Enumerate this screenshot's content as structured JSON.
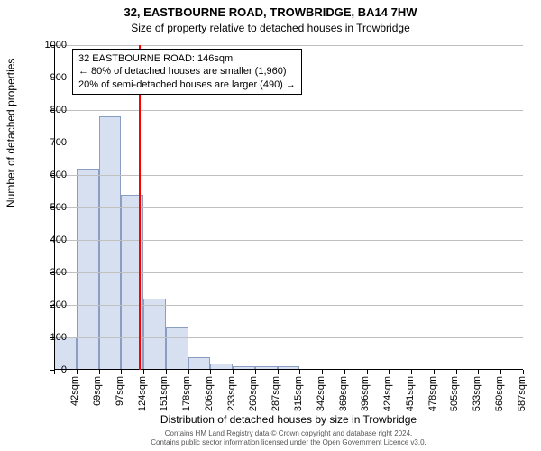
{
  "title_main": "32, EASTBOURNE ROAD, TROWBRIDGE, BA14 7HW",
  "title_sub": "Size of property relative to detached houses in Trowbridge",
  "ylabel": "Number of detached properties",
  "xlabel": "Distribution of detached houses by size in Trowbridge",
  "footer_line1": "Contains HM Land Registry data © Crown copyright and database right 2024.",
  "footer_line2": "Contains public sector information licensed under the Open Government Licence v3.0.",
  "chart": {
    "type": "histogram",
    "ylim": [
      0,
      1000
    ],
    "ytick_step": 100,
    "x_categories": [
      "42sqm",
      "69sqm",
      "97sqm",
      "124sqm",
      "151sqm",
      "178sqm",
      "206sqm",
      "233sqm",
      "260sqm",
      "287sqm",
      "315sqm",
      "342sqm",
      "369sqm",
      "396sqm",
      "424sqm",
      "451sqm",
      "478sqm",
      "505sqm",
      "533sqm",
      "560sqm",
      "587sqm"
    ],
    "values": [
      100,
      620,
      780,
      540,
      220,
      130,
      40,
      20,
      10,
      10,
      10,
      0,
      0,
      0,
      0,
      0,
      0,
      0,
      0,
      0,
      0
    ],
    "bar_fill": "#d6e0f0",
    "bar_stroke": "#8a9ec4",
    "grid_color": "#c0c0c0",
    "background_color": "#ffffff",
    "marker_index": 3.8,
    "marker_color": "#ff0000",
    "bar_width_ratio": 1.0
  },
  "annotation": {
    "line1": "32 EASTBOURNE ROAD: 146sqm",
    "line2": "← 80% of detached houses are smaller (1,960)",
    "line3": "20% of semi-detached houses are larger (490) →"
  }
}
